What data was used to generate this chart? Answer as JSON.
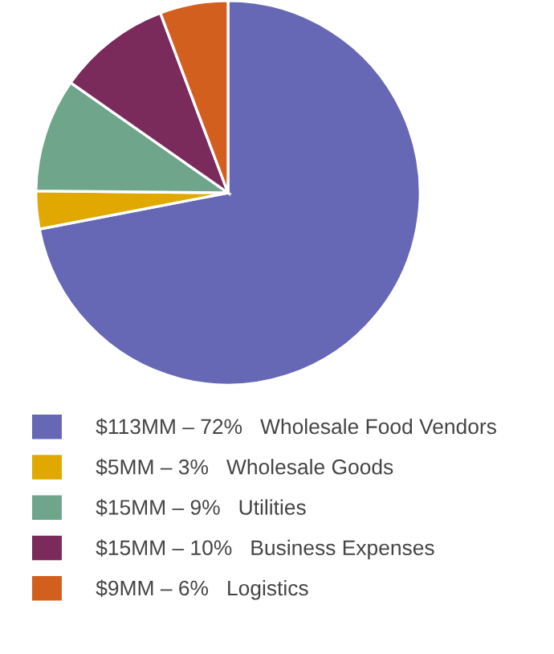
{
  "chart_data": {
    "type": "pie",
    "categories": [
      "Wholesale Food Vendors",
      "Wholesale Goods",
      "Utilities",
      "Business Expenses",
      "Logistics"
    ],
    "values": [
      113,
      5,
      15,
      15,
      9
    ],
    "value_labels": [
      "$113MM – 72%",
      "$5MM – 3%",
      "$15MM – 9%",
      "$15MM – 10%",
      "$9MM – 6%"
    ],
    "colors": [
      "#6667b5",
      "#e0a800",
      "#6fa58a",
      "#7b2a5c",
      "#d35f1f"
    ],
    "legend": "bottom"
  }
}
